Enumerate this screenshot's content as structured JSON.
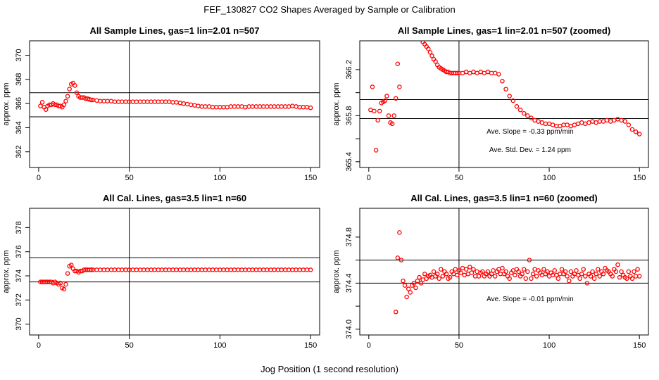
{
  "figure": {
    "title": "FEF_130827  CO2 Shapes Averaged by Sample or Calibration",
    "xlabel": "Jog Position (1 second resolution)"
  },
  "colors": {
    "points": "#ff0000",
    "axes": "#000000",
    "background": "#ffffff"
  },
  "chart_data": [
    {
      "type": "scatter",
      "title": "All Sample Lines, gas=1 lin=2.01 n=507",
      "ylabel": "approx. ppm",
      "xlim": [
        -5,
        155
      ],
      "ylim": [
        360.7,
        371.2
      ],
      "xticks": [
        0,
        50,
        100,
        150
      ],
      "yticks": [
        362,
        364,
        366,
        368,
        370
      ],
      "vline": 50,
      "hlines": [
        364.9,
        366.9
      ],
      "series": [
        {
          "x": [
            1,
            2,
            3,
            4,
            5,
            6,
            7,
            8,
            9,
            10,
            11,
            12,
            13,
            14,
            15,
            16,
            17,
            18,
            19,
            20,
            21,
            22,
            23,
            24,
            25,
            26,
            27,
            28,
            29,
            30,
            32,
            34,
            36,
            38,
            40,
            42,
            44,
            46,
            48,
            50,
            52,
            54,
            56,
            58,
            60,
            62,
            64,
            66,
            68,
            70,
            72,
            74,
            76,
            78,
            80,
            82,
            84,
            86,
            88,
            90,
            92,
            94,
            96,
            98,
            100,
            102,
            104,
            106,
            108,
            110,
            112,
            114,
            116,
            118,
            120,
            122,
            124,
            126,
            128,
            130,
            132,
            134,
            136,
            138,
            140,
            142,
            144,
            146,
            148,
            150
          ],
          "y": [
            365.8,
            366.1,
            365.7,
            365.5,
            365.8,
            365.9,
            365.9,
            366.0,
            365.9,
            365.9,
            365.8,
            365.8,
            365.7,
            365.9,
            366.2,
            366.6,
            367.2,
            367.6,
            367.7,
            367.5,
            366.9,
            366.6,
            366.5,
            366.5,
            366.5,
            366.4,
            366.4,
            366.35,
            366.3,
            366.3,
            366.25,
            366.2,
            366.2,
            366.2,
            366.2,
            366.15,
            366.15,
            366.15,
            366.15,
            366.15,
            366.15,
            366.15,
            366.15,
            366.15,
            366.15,
            366.15,
            366.15,
            366.15,
            366.15,
            366.15,
            366.15,
            366.1,
            366.1,
            366.05,
            366.0,
            365.95,
            365.9,
            365.85,
            365.8,
            365.75,
            365.75,
            365.75,
            365.7,
            365.7,
            365.7,
            365.7,
            365.7,
            365.75,
            365.75,
            365.75,
            365.75,
            365.7,
            365.75,
            365.75,
            365.75,
            365.75,
            365.75,
            365.75,
            365.75,
            365.75,
            365.75,
            365.75,
            365.75,
            365.75,
            365.8,
            365.75,
            365.7,
            365.7,
            365.7,
            365.65
          ]
        }
      ]
    },
    {
      "type": "scatter",
      "title": "All Sample Lines, gas=1 lin=2.01 n=507 (zoomed)",
      "ylabel": "approx. ppm",
      "xlim": [
        -5,
        155
      ],
      "ylim": [
        365.35,
        366.45
      ],
      "xticks": [
        0,
        50,
        100,
        150
      ],
      "yticks": [
        365.4,
        365.6,
        365.8,
        366.0,
        366.2
      ],
      "ytick_labels": [
        "365.4",
        "",
        "365.8",
        "",
        "366.2"
      ],
      "vline": 50,
      "hlines": [
        365.94,
        365.775
      ],
      "annotations": [
        "Ave. Slope =  -0.33  ppm/min",
        "Ave. Std. Dev. =  1.24  ppm"
      ],
      "series": [
        {
          "x": [
            1,
            2,
            3,
            4,
            5,
            6,
            7,
            8,
            9,
            10,
            11,
            12,
            13,
            14,
            15,
            16,
            17,
            30,
            31,
            32,
            33,
            34,
            35,
            36,
            37,
            38,
            39,
            40,
            41,
            42,
            43,
            44,
            45,
            46,
            47,
            48,
            49,
            50,
            52,
            54,
            56,
            58,
            60,
            62,
            64,
            66,
            68,
            70,
            72,
            74,
            76,
            78,
            80,
            82,
            84,
            86,
            88,
            90,
            92,
            94,
            96,
            98,
            100,
            102,
            104,
            106,
            108,
            110,
            112,
            114,
            116,
            118,
            120,
            122,
            124,
            126,
            128,
            130,
            132,
            134,
            136,
            138,
            140,
            142,
            144,
            146,
            148,
            150
          ],
          "y": [
            365.85,
            366.05,
            365.84,
            365.5,
            365.76,
            365.84,
            365.91,
            365.92,
            365.93,
            365.97,
            365.8,
            365.74,
            365.73,
            365.8,
            365.95,
            366.25,
            366.05,
            366.44,
            366.42,
            366.4,
            366.38,
            366.35,
            366.32,
            366.29,
            366.27,
            366.24,
            366.22,
            366.21,
            366.2,
            366.19,
            366.18,
            366.18,
            366.17,
            366.17,
            366.17,
            366.17,
            366.17,
            366.17,
            366.17,
            366.18,
            366.17,
            366.18,
            366.17,
            366.18,
            366.17,
            366.18,
            366.17,
            366.17,
            366.16,
            366.1,
            366.03,
            365.97,
            365.93,
            365.88,
            365.85,
            365.82,
            365.8,
            365.78,
            365.76,
            365.75,
            365.74,
            365.73,
            365.73,
            365.72,
            365.71,
            365.71,
            365.72,
            365.72,
            365.71,
            365.72,
            365.73,
            365.74,
            365.73,
            365.74,
            365.75,
            365.74,
            365.75,
            365.75,
            365.76,
            365.75,
            365.76,
            365.77,
            365.76,
            365.75,
            365.72,
            365.68,
            365.66,
            365.64
          ]
        }
      ]
    },
    {
      "type": "scatter",
      "title": "All Cal. Lines, gas=3.5 lin=1 n=60",
      "ylabel": "approx. ppm",
      "xlim": [
        -5,
        155
      ],
      "ylim": [
        369.1,
        379.6
      ],
      "xticks": [
        0,
        50,
        100,
        150
      ],
      "yticks": [
        370,
        372,
        374,
        376,
        378
      ],
      "vline": 50,
      "hlines": [
        375.5,
        373.5
      ],
      "series": [
        {
          "x": [
            1,
            2,
            3,
            4,
            5,
            6,
            7,
            8,
            9,
            10,
            11,
            12,
            13,
            14,
            15,
            16,
            17,
            18,
            19,
            20,
            21,
            22,
            23,
            24,
            25,
            26,
            27,
            28,
            29,
            30,
            32,
            34,
            36,
            38,
            40,
            42,
            44,
            46,
            48,
            50,
            52,
            54,
            56,
            58,
            60,
            62,
            64,
            66,
            68,
            70,
            72,
            74,
            76,
            78,
            80,
            82,
            84,
            86,
            88,
            90,
            92,
            94,
            96,
            98,
            100,
            102,
            104,
            106,
            108,
            110,
            112,
            114,
            116,
            118,
            120,
            122,
            124,
            126,
            128,
            130,
            132,
            134,
            136,
            138,
            140,
            142,
            144,
            146,
            148,
            150
          ],
          "y": [
            373.5,
            373.5,
            373.5,
            373.5,
            373.5,
            373.5,
            373.5,
            373.4,
            373.5,
            373.4,
            373.3,
            373.4,
            373.0,
            372.9,
            373.3,
            374.2,
            374.8,
            374.9,
            374.6,
            374.4,
            374.4,
            374.3,
            374.4,
            374.4,
            374.5,
            374.5,
            374.5,
            374.5,
            374.5,
            374.5,
            374.5,
            374.5,
            374.5,
            374.5,
            374.5,
            374.5,
            374.5,
            374.5,
            374.5,
            374.5,
            374.5,
            374.5,
            374.5,
            374.5,
            374.5,
            374.5,
            374.5,
            374.5,
            374.5,
            374.5,
            374.5,
            374.5,
            374.5,
            374.5,
            374.5,
            374.5,
            374.5,
            374.5,
            374.5,
            374.5,
            374.5,
            374.5,
            374.5,
            374.5,
            374.5,
            374.5,
            374.5,
            374.5,
            374.5,
            374.5,
            374.5,
            374.5,
            374.5,
            374.5,
            374.5,
            374.5,
            374.5,
            374.5,
            374.5,
            374.5,
            374.5,
            374.5,
            374.5,
            374.5,
            374.5,
            374.5,
            374.5,
            374.5,
            374.5,
            374.5
          ]
        }
      ]
    },
    {
      "type": "scatter",
      "title": "All Cal. Lines, gas=3.5 lin=1 n=60 (zoomed)",
      "ylabel": "approx. ppm",
      "xlim": [
        -5,
        155
      ],
      "ylim": [
        373.95,
        375.05
      ],
      "xticks": [
        0,
        50,
        100,
        150
      ],
      "yticks": [
        374.0,
        374.2,
        374.4,
        374.6,
        374.8
      ],
      "ytick_labels": [
        "374.0",
        "",
        "374.4",
        "",
        "374.8"
      ],
      "vline": 50,
      "hlines": [
        374.6,
        374.4
      ],
      "annotations": [
        "Ave. Slope =  -0.01  ppm/min"
      ],
      "series": [
        {
          "x": [
            15,
            16,
            17,
            18,
            19,
            20,
            21,
            22,
            23,
            24,
            25,
            26,
            27,
            28,
            29,
            30,
            31,
            32,
            33,
            34,
            35,
            36,
            37,
            38,
            39,
            40,
            41,
            42,
            43,
            44,
            45,
            46,
            47,
            48,
            49,
            50,
            51,
            52,
            53,
            54,
            55,
            56,
            57,
            58,
            59,
            60,
            61,
            62,
            63,
            64,
            65,
            66,
            67,
            68,
            69,
            70,
            71,
            72,
            73,
            74,
            75,
            76,
            77,
            78,
            79,
            80,
            81,
            82,
            83,
            84,
            85,
            86,
            87,
            88,
            89,
            90,
            91,
            92,
            93,
            94,
            95,
            96,
            97,
            98,
            99,
            100,
            101,
            102,
            103,
            104,
            105,
            106,
            107,
            108,
            109,
            110,
            111,
            112,
            113,
            114,
            115,
            116,
            117,
            118,
            119,
            120,
            121,
            122,
            123,
            124,
            125,
            126,
            127,
            128,
            129,
            130,
            131,
            132,
            133,
            134,
            135,
            136,
            137,
            138,
            139,
            140,
            141,
            142,
            143,
            144,
            145,
            146,
            147,
            148,
            149,
            150
          ],
          "y": [
            374.15,
            374.62,
            374.84,
            374.6,
            374.42,
            374.38,
            374.28,
            374.35,
            374.32,
            374.38,
            374.4,
            374.36,
            374.42,
            374.45,
            374.4,
            374.43,
            374.48,
            374.44,
            374.46,
            374.47,
            374.45,
            374.5,
            374.46,
            374.48,
            374.44,
            374.52,
            374.46,
            374.5,
            374.48,
            374.44,
            374.45,
            374.5,
            374.48,
            374.52,
            374.47,
            374.51,
            374.49,
            374.53,
            374.47,
            374.52,
            374.48,
            374.54,
            374.49,
            374.52,
            374.46,
            374.5,
            374.46,
            374.49,
            374.5,
            374.46,
            374.48,
            374.5,
            374.46,
            374.48,
            374.51,
            374.46,
            374.5,
            374.52,
            374.48,
            374.53,
            374.48,
            374.5,
            374.46,
            374.44,
            374.49,
            374.51,
            374.47,
            374.52,
            374.5,
            374.46,
            374.48,
            374.52,
            374.44,
            374.5,
            374.6,
            374.44,
            374.48,
            374.52,
            374.46,
            374.51,
            374.49,
            374.47,
            374.52,
            374.48,
            374.5,
            374.46,
            374.49,
            374.47,
            374.51,
            374.47,
            374.44,
            374.48,
            374.52,
            374.48,
            374.5,
            374.46,
            374.42,
            374.5,
            374.46,
            374.48,
            374.51,
            374.47,
            374.44,
            374.48,
            374.52,
            374.46,
            374.4,
            374.48,
            374.46,
            374.5,
            374.44,
            374.48,
            374.52,
            374.46,
            374.5,
            374.48,
            374.53,
            374.51,
            374.5,
            374.48,
            374.46,
            374.52,
            374.5,
            374.56,
            374.45,
            374.5,
            374.47,
            374.45,
            374.44,
            374.5,
            374.46,
            374.44,
            374.5,
            374.46,
            374.52,
            374.46
          ]
        }
      ]
    }
  ]
}
